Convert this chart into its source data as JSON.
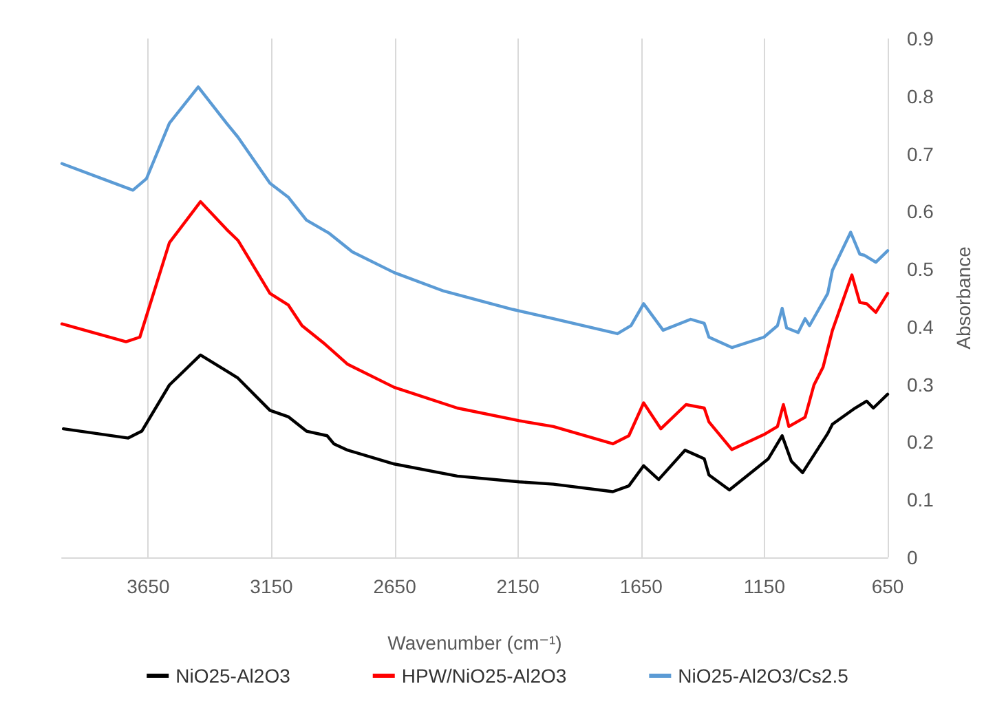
{
  "chart_data": {
    "type": "line",
    "xlabel": "Wavenumber (cm⁻¹)",
    "ylabel": "Absorbance",
    "xlim": [
      4000,
      650
    ],
    "xticks": [
      3650,
      3150,
      2650,
      2150,
      1650,
      1150,
      650
    ],
    "ylim": [
      0,
      0.9
    ],
    "yticks": [
      0,
      0.1,
      0.2,
      0.3,
      0.4,
      0.5,
      0.6,
      0.7,
      0.8,
      0.9
    ],
    "grid": "x",
    "legend": "bottom",
    "marker": "none",
    "line_style": "solid",
    "series": [
      {
        "name": "NiO25-Al2O3",
        "color": "#000000",
        "x": [
          3994,
          3731,
          3676,
          3564,
          3438,
          3323,
          3286,
          3156,
          3082,
          3008,
          2924,
          2897,
          2841,
          2652,
          2396,
          2145,
          2006,
          1765,
          1700,
          1640,
          1579,
          1472,
          1394,
          1375,
          1292,
          1134,
          1078,
          1041,
          995,
          893,
          874,
          782,
          735,
          708,
          650
        ],
        "values": [
          0.223,
          0.207,
          0.219,
          0.299,
          0.351,
          0.321,
          0.311,
          0.255,
          0.244,
          0.219,
          0.211,
          0.197,
          0.186,
          0.162,
          0.141,
          0.131,
          0.127,
          0.114,
          0.124,
          0.159,
          0.135,
          0.186,
          0.171,
          0.143,
          0.117,
          0.171,
          0.211,
          0.167,
          0.147,
          0.215,
          0.231,
          0.259,
          0.271,
          0.259,
          0.283
        ]
      },
      {
        "name": "HPW/NiO25-Al2O3",
        "color": "#ff0000",
        "x": [
          4000,
          3740,
          3684,
          3564,
          3438,
          3332,
          3286,
          3156,
          3082,
          3026,
          2933,
          2841,
          2652,
          2396,
          2145,
          2006,
          1765,
          1700,
          1640,
          1570,
          1468,
          1394,
          1375,
          1282,
          1152,
          1097,
          1073,
          1051,
          985,
          949,
          912,
          874,
          795,
          763,
          735,
          698,
          650
        ],
        "values": [
          0.405,
          0.374,
          0.382,
          0.546,
          0.617,
          0.569,
          0.55,
          0.458,
          0.438,
          0.402,
          0.37,
          0.335,
          0.295,
          0.259,
          0.237,
          0.227,
          0.197,
          0.211,
          0.268,
          0.223,
          0.265,
          0.259,
          0.235,
          0.187,
          0.213,
          0.227,
          0.265,
          0.227,
          0.243,
          0.299,
          0.33,
          0.394,
          0.49,
          0.442,
          0.44,
          0.425,
          0.458
        ]
      },
      {
        "name": "NiO25-Al2O3/Cs2.5",
        "color": "#5b9bd5",
        "x": [
          4000,
          3712,
          3657,
          3564,
          3447,
          3332,
          3286,
          3156,
          3082,
          3008,
          2915,
          2822,
          2652,
          2451,
          2170,
          2006,
          1746,
          1691,
          1640,
          1561,
          1449,
          1394,
          1375,
          1282,
          1152,
          1097,
          1078,
          1060,
          1013,
          985,
          967,
          893,
          874,
          800,
          763,
          744,
          698,
          650
        ],
        "values": [
          0.683,
          0.637,
          0.657,
          0.753,
          0.816,
          0.753,
          0.729,
          0.649,
          0.625,
          0.585,
          0.562,
          0.53,
          0.494,
          0.462,
          0.43,
          0.414,
          0.388,
          0.402,
          0.44,
          0.394,
          0.413,
          0.406,
          0.382,
          0.364,
          0.382,
          0.402,
          0.432,
          0.398,
          0.39,
          0.414,
          0.402,
          0.458,
          0.498,
          0.564,
          0.526,
          0.524,
          0.512,
          0.532
        ]
      }
    ]
  }
}
